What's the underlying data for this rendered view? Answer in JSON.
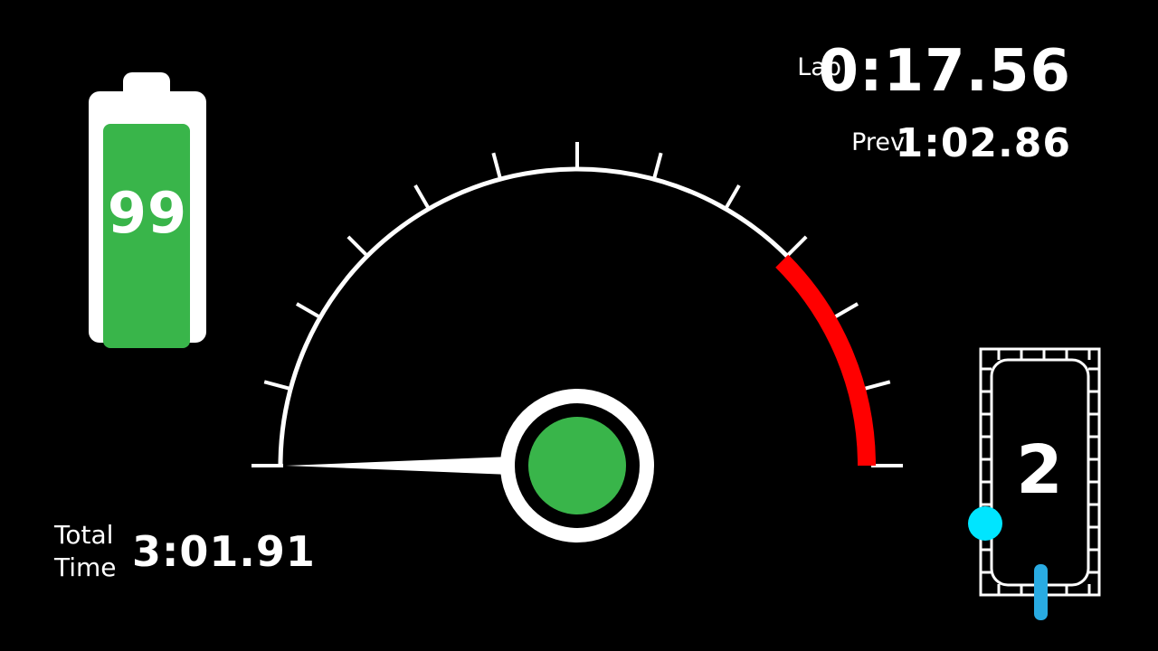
{
  "battery": {
    "level": "99",
    "level_fraction": 0.99,
    "color": "#39b54a"
  },
  "lap": {
    "label": "Lap",
    "time": "0:17.56"
  },
  "prev": {
    "label": "Prev",
    "time": "1:02.86"
  },
  "total": {
    "label_line1": "Total",
    "label_line2": "Time",
    "time": "3:01.91"
  },
  "gauge": {
    "needle_fraction": 0.0,
    "redline_start_fraction": 0.75,
    "tick_count": 12,
    "hub_color": "#39b54a",
    "redline_color": "#ff0000"
  },
  "gear": {
    "value": "2",
    "marker_color": "#00e5ff",
    "indicator_color": "#29abe2"
  }
}
